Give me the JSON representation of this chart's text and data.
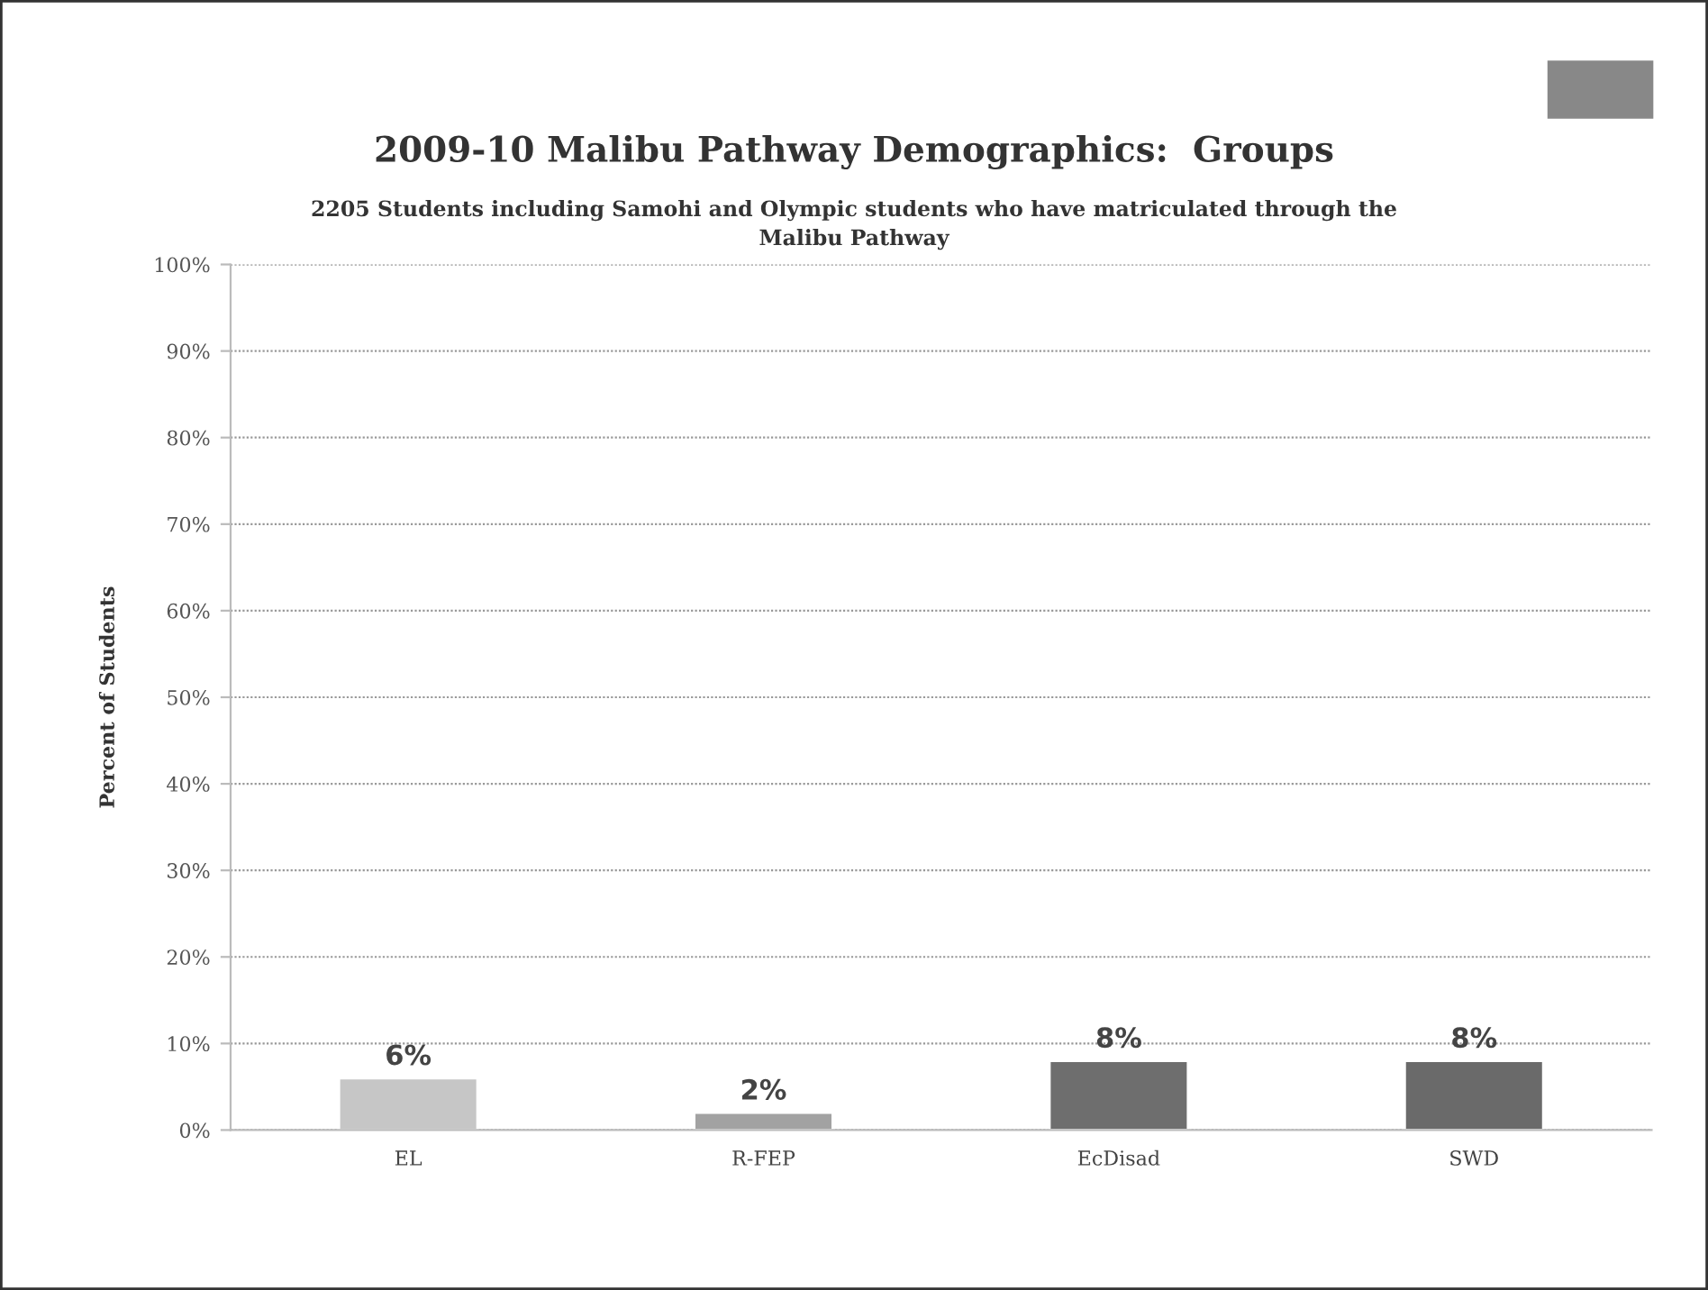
{
  "chart_data": {
    "type": "bar",
    "title": "2009-10 Malibu Pathway Demographics:  Groups",
    "subtitle": "2205 Students including Samohi and Olympic students who have matriculated through the\nMalibu Pathway",
    "ylabel": "Percent of Students",
    "categories": [
      "EL",
      "R-FEP",
      "EcDisad",
      "SWD"
    ],
    "values": [
      6,
      2,
      8,
      8
    ],
    "colors": [
      "#c6c6c6",
      "#a2a2a2",
      "#6e6e6e",
      "#6a6a6a"
    ],
    "value_labels": [
      "6%",
      "2%",
      "8%",
      "8%"
    ],
    "ylim": [
      0,
      100
    ],
    "yticks": [
      {
        "value": 0,
        "label": "0%"
      },
      {
        "value": 10,
        "label": "10%"
      },
      {
        "value": 20,
        "label": "20%"
      },
      {
        "value": 30,
        "label": "30%"
      },
      {
        "value": 40,
        "label": "40%"
      },
      {
        "value": 50,
        "label": "50%"
      },
      {
        "value": 60,
        "label": "60%"
      },
      {
        "value": 70,
        "label": "70%"
      },
      {
        "value": 80,
        "label": "80%"
      },
      {
        "value": 90,
        "label": "90%"
      },
      {
        "value": 100,
        "label": "100%"
      }
    ],
    "grid": "y",
    "legend": false
  }
}
